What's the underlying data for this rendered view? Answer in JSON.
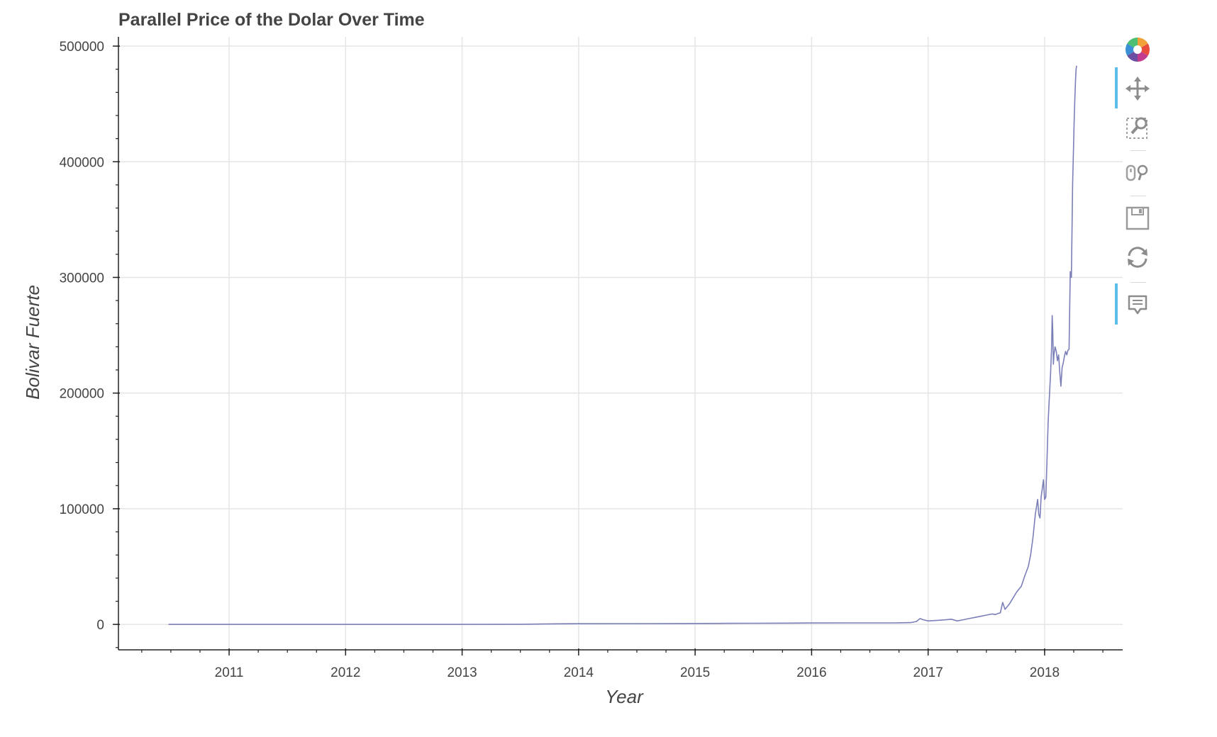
{
  "chart_data": {
    "type": "line",
    "title": "Parallel Price of the Dolar Over Time",
    "xlabel": "Year",
    "ylabel": "Bolivar Fuerte",
    "xlim": [
      2010.05,
      2018.67
    ],
    "ylim": [
      -22000,
      508000
    ],
    "x_ticks": [
      2011,
      2012,
      2013,
      2014,
      2015,
      2016,
      2017,
      2018
    ],
    "x_tick_labels": [
      "2011",
      "2012",
      "2013",
      "2014",
      "2015",
      "2016",
      "2017",
      "2018"
    ],
    "y_ticks": [
      0,
      100000,
      200000,
      300000,
      400000,
      500000
    ],
    "y_tick_labels": [
      "0",
      "100000",
      "200000",
      "300000",
      "400000",
      "500000"
    ],
    "grid": true,
    "line_color": "#7b7fb8",
    "series": [
      {
        "x": [
          2010.48,
          2011.0,
          2012.0,
          2013.0,
          2013.5,
          2013.8,
          2014.0,
          2014.5,
          2015.0,
          2015.3,
          2015.5,
          2015.8,
          2016.0,
          2016.3,
          2016.5,
          2016.7,
          2016.85,
          2016.9,
          2016.93,
          2016.96,
          2017.0,
          2017.08,
          2017.15,
          2017.2,
          2017.25,
          2017.3,
          2017.35,
          2017.4,
          2017.45,
          2017.5,
          2017.55,
          2017.58,
          2017.6,
          2017.62,
          2017.64,
          2017.66,
          2017.7,
          2017.73,
          2017.76,
          2017.8,
          2017.83,
          2017.86,
          2017.88,
          2017.9,
          2017.92,
          2017.94,
          2017.95,
          2017.96,
          2017.97,
          2017.99,
          2018.0,
          2018.01,
          2018.02,
          2018.03,
          2018.04,
          2018.05,
          2018.06,
          2018.065,
          2018.07,
          2018.075,
          2018.08,
          2018.09,
          2018.1,
          2018.11,
          2018.12,
          2018.13,
          2018.14,
          2018.15,
          2018.16,
          2018.17,
          2018.18,
          2018.19,
          2018.2,
          2018.21,
          2018.22,
          2018.23,
          2018.24,
          2018.25,
          2018.255,
          2018.26,
          2018.265,
          2018.27,
          2018.275
        ],
        "y": [
          0,
          0,
          0,
          0,
          100,
          500,
          600,
          700,
          800,
          900,
          1000,
          1100,
          1200,
          1300,
          1300,
          1300,
          1500,
          2500,
          5000,
          4000,
          3000,
          3500,
          4000,
          4500,
          3000,
          4000,
          5000,
          6000,
          7000,
          8000,
          9000,
          8500,
          9500,
          10000,
          19000,
          13000,
          18000,
          23000,
          28000,
          33000,
          42000,
          50000,
          60000,
          75000,
          95000,
          108000,
          95000,
          92000,
          110000,
          125000,
          108000,
          110000,
          140000,
          175000,
          195000,
          215000,
          240000,
          267000,
          255000,
          225000,
          233000,
          240000,
          236000,
          228000,
          233000,
          218000,
          206000,
          222000,
          226000,
          232000,
          236000,
          233000,
          237000,
          238000,
          305000,
          300000,
          380000,
          420000,
          440000,
          455000,
          470000,
          480000,
          483000
        ]
      }
    ]
  },
  "toolbar": {
    "tools": [
      {
        "icon": "bokeh-logo-icon"
      },
      {
        "icon": "pan-icon"
      },
      {
        "icon": "box-zoom-icon"
      },
      {
        "icon": "wheel-zoom-icon"
      },
      {
        "icon": "save-icon"
      },
      {
        "icon": "reset-icon"
      },
      {
        "icon": "hover-icon"
      }
    ]
  }
}
